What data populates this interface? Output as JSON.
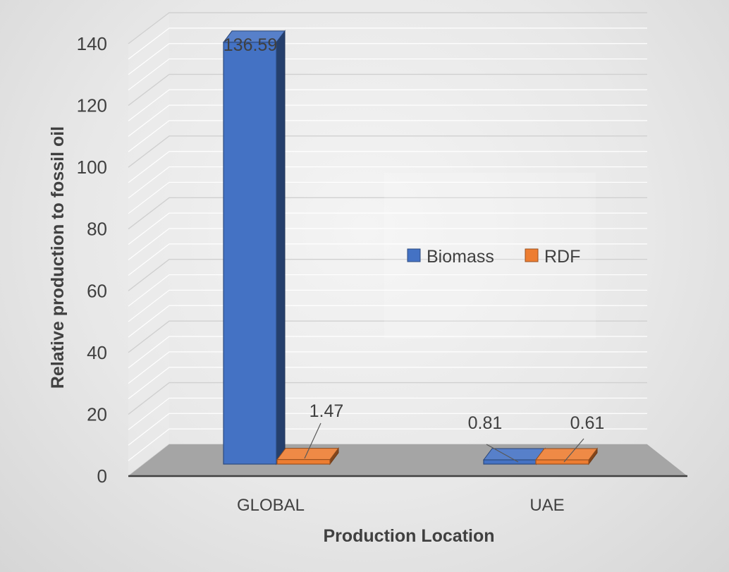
{
  "chart_data": {
    "type": "bar",
    "title": "",
    "categories": [
      "GLOBAL",
      "UAE"
    ],
    "series": [
      {
        "name": "Biomass",
        "values": [
          136.59,
          0.81
        ],
        "color": "#4472c4",
        "labels": [
          "136.59",
          "0.81"
        ]
      },
      {
        "name": "RDF",
        "values": [
          1.47,
          0.61
        ],
        "color": "#ed7d31",
        "labels": [
          "1.47",
          "0.61"
        ]
      }
    ],
    "xlabel": "Production Location",
    "ylabel": "Relative production to fossil oil",
    "ylim": [
      0,
      140
    ],
    "yticks": [
      "0",
      "20",
      "40",
      "60",
      "80",
      "100",
      "120",
      "140"
    ],
    "grid": true,
    "legend_position": "center-right",
    "style": "3d-clustered-column"
  }
}
